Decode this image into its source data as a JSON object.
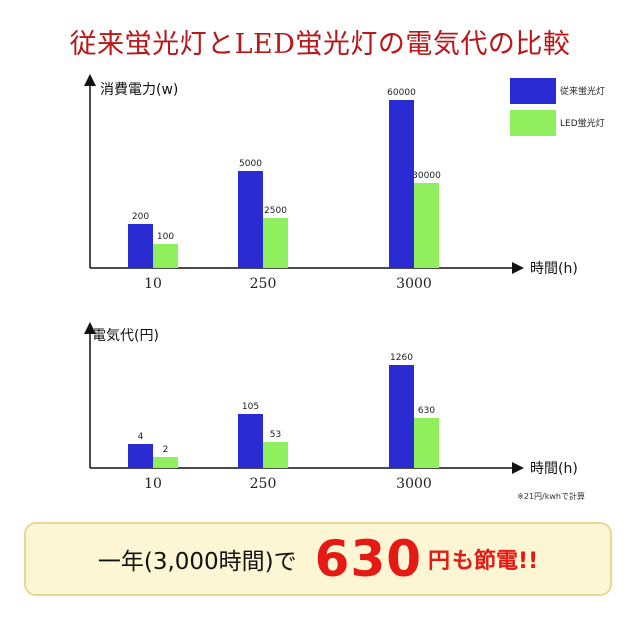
{
  "title": "従来蛍光灯とLED蛍光灯の電気代の比較",
  "legend": {
    "series1": "従来蛍光灯",
    "series2": "LED蛍光灯"
  },
  "colors": {
    "series1": "#2a2bd2",
    "series2": "#8fef5c",
    "title": "#b81818",
    "accent": "#e51a14"
  },
  "note": "※21円/kwhで計算",
  "banner": {
    "prefix": "一年(3,000時間)で",
    "value": "630",
    "yen": "円",
    "suffix": "も節電!!"
  },
  "chart_data": [
    {
      "type": "bar",
      "ylabel": "消費電力(w)",
      "xlabel": "時間(h)",
      "categories": [
        "10",
        "250",
        "3000"
      ],
      "series": [
        {
          "name": "従来蛍光灯",
          "values": [
            200,
            5000,
            60000
          ]
        },
        {
          "name": "LED蛍光灯",
          "values": [
            100,
            2500,
            30000
          ]
        }
      ],
      "legend_position": "top-right",
      "grid": false
    },
    {
      "type": "bar",
      "ylabel": "電気代(円)",
      "xlabel": "時間(h)",
      "categories": [
        "10",
        "250",
        "3000"
      ],
      "series": [
        {
          "name": "従来蛍光灯",
          "values": [
            4,
            105,
            1260
          ]
        },
        {
          "name": "LED蛍光灯",
          "values": [
            2,
            53,
            630
          ]
        }
      ],
      "grid": false
    }
  ]
}
